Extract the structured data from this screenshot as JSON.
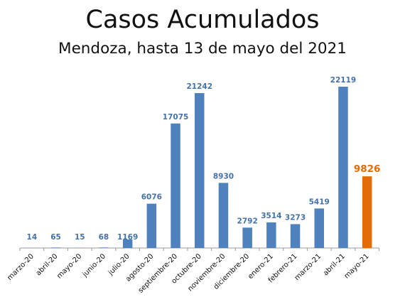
{
  "chart_data": {
    "type": "bar",
    "title": "Casos Acumulados",
    "subtitle": "Mendoza, hasta 13 de mayo del 2021",
    "xlabel": "",
    "ylabel": "",
    "ylim": [
      0,
      22119
    ],
    "grid": false,
    "categories": [
      "marzo-20",
      "abril-20",
      "mayo-20",
      "junio-20",
      "julio-20",
      "agosto-20",
      "septiembre-20",
      "octubre-20",
      "noviembre-20",
      "diciembre-20",
      "enero-21",
      "febrero-21",
      "marzo-21",
      "abril-21",
      "mayo-21"
    ],
    "values": [
      14,
      65,
      15,
      68,
      1169,
      6076,
      17075,
      21242,
      8930,
      2792,
      3514,
      3273,
      5419,
      22119,
      9826
    ],
    "highlight_index": 14,
    "colors": {
      "bar": "#4F81BD",
      "highlight": "#E36C09",
      "label": "#4472A8",
      "axis": "#9A9A9A"
    }
  }
}
